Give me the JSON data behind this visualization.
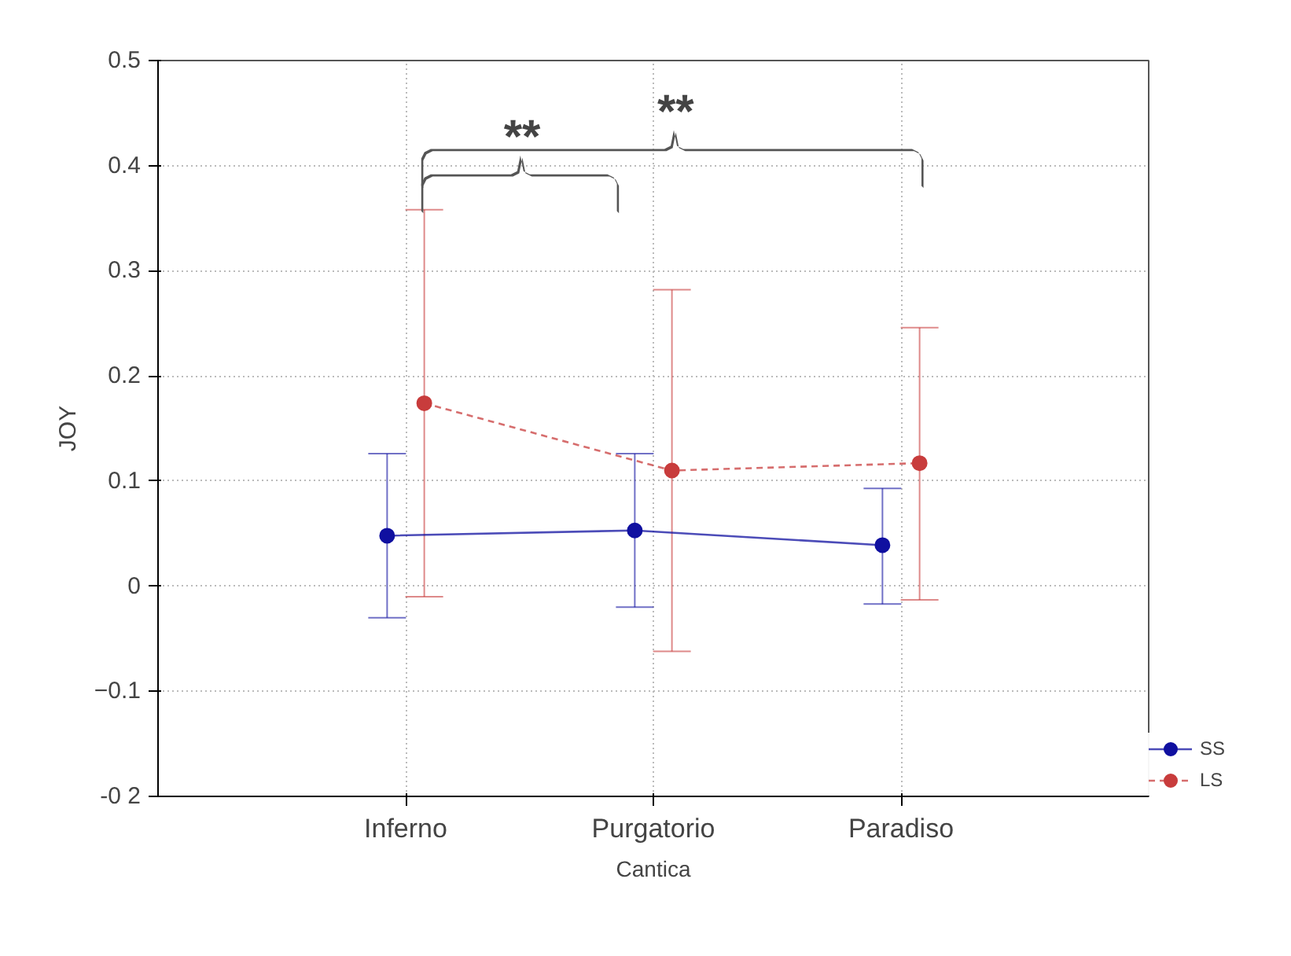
{
  "chart_data": {
    "type": "line",
    "xlabel": "Cantica",
    "ylabel": "JOY",
    "categories": [
      "Inferno",
      "Purgatorio",
      "Paradiso"
    ],
    "ylim": [
      -0.2,
      0.5
    ],
    "yticks": [
      {
        "value": -0.2,
        "label": "-0 2"
      },
      -0.1,
      0.0,
      0.1,
      0.2,
      0.3,
      0.4,
      0.5
    ],
    "grid": true,
    "legend": "bottom right",
    "marker": "circle",
    "series": [
      {
        "name": "SS",
        "color": "#1010a0",
        "line_style": "solid",
        "values": [
          0.048,
          0.053,
          0.039
        ],
        "errors": [
          [
            -0.03,
            0.126
          ],
          [
            -0.02,
            0.126
          ],
          [
            -0.017,
            0.093
          ]
        ]
      },
      {
        "name": "LS",
        "color": "#c83c3c",
        "line_style": "dashed",
        "values": [
          0.174,
          0.11,
          0.117
        ],
        "errors": [
          [
            -0.01,
            0.358
          ],
          [
            -0.062,
            0.282
          ],
          [
            -0.013,
            0.246
          ]
        ]
      }
    ],
    "annotations": [
      "**",
      "**"
    ]
  }
}
